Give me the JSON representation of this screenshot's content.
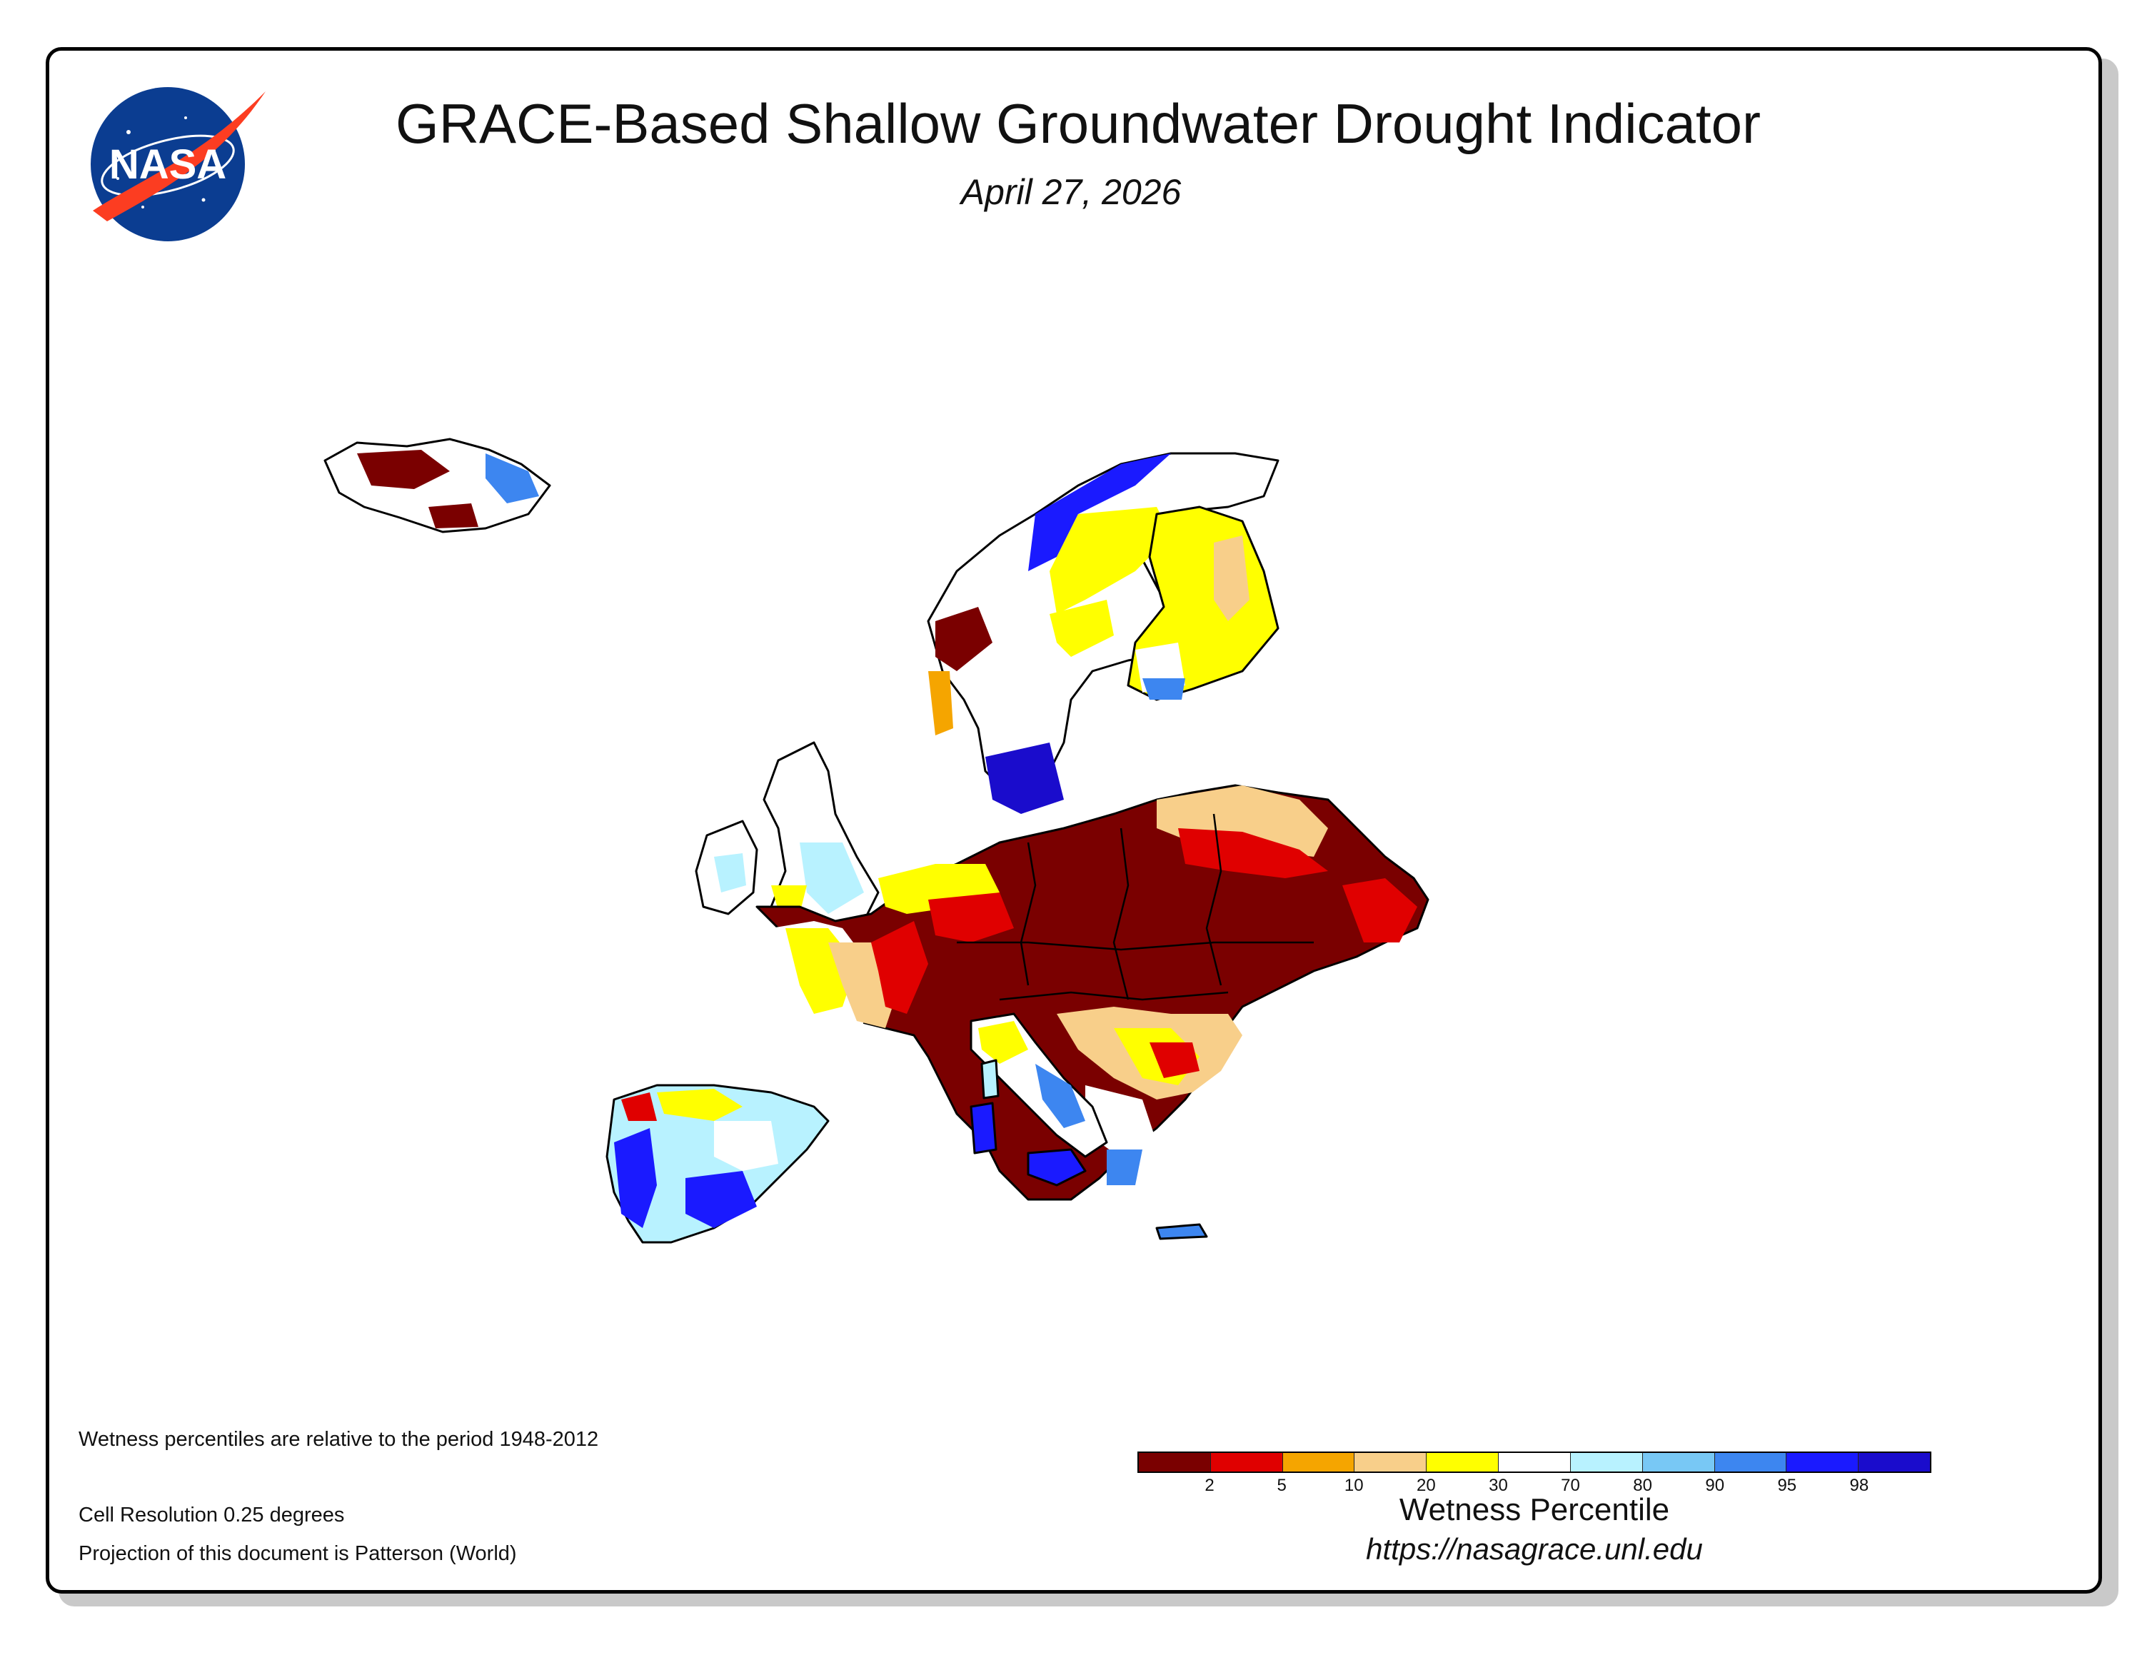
{
  "header": {
    "title": "GRACE-Based Shallow Groundwater Drought Indicator",
    "date": "April 27, 2026",
    "logo_text": "NASA"
  },
  "notes": {
    "period": "Wetness percentiles are relative to the period 1948-2012",
    "resolution": "Cell Resolution 0.25 degrees",
    "projection": "Projection of this document is Patterson (World)"
  },
  "legend": {
    "title": "Wetness Percentile",
    "url": "https://nasagrace.unl.edu",
    "colors": [
      "#7a0000",
      "#e00000",
      "#f5a500",
      "#f8cf8a",
      "#ffff00",
      "#ffffff",
      "#b8f2ff",
      "#78c8f5",
      "#3d86f0",
      "#1a1aff",
      "#1a0ccc"
    ],
    "ticks": [
      "2",
      "5",
      "10",
      "20",
      "30",
      "70",
      "80",
      "90",
      "95",
      "98"
    ]
  },
  "map": {
    "region": "Europe",
    "colors": {
      "extreme_dry": "#7a0000",
      "dry_red": "#e00000",
      "orange": "#f5a500",
      "tan": "#f8cf8a",
      "yellow": "#ffff00",
      "normal": "#ffffff",
      "light_blue": "#b8f2ff",
      "sky": "#78c8f5",
      "blue": "#3d86f0",
      "deep_blue": "#1a1aff",
      "navy": "#1a0ccc"
    }
  }
}
